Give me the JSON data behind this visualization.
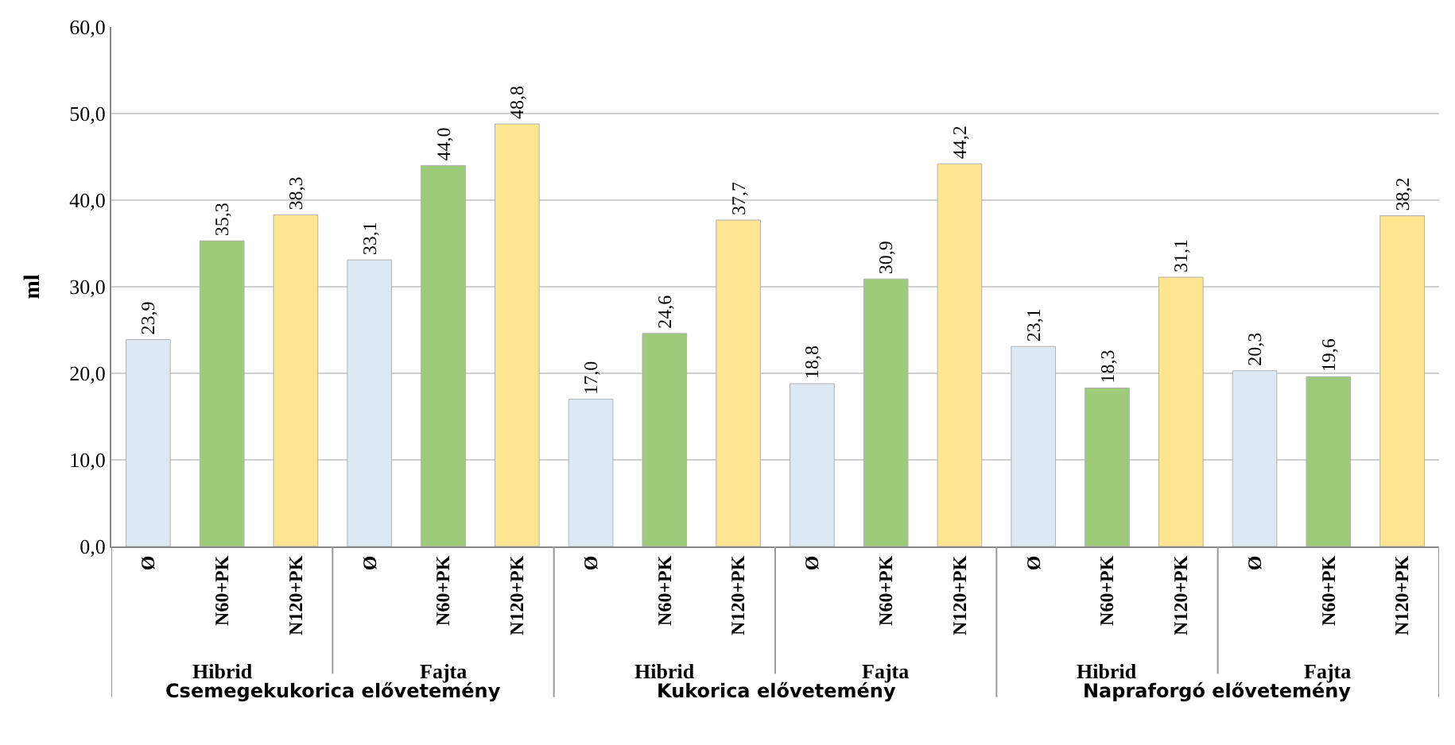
{
  "chart_data": {
    "type": "bar",
    "ylabel": "ml",
    "categories": [
      "Ø",
      "N60+PK",
      "N120+PK",
      "Ø",
      "N60+PK",
      "N120+PK",
      "Ø",
      "N60+PK",
      "N120+PK",
      "Ø",
      "N60+PK",
      "N120+PK",
      "Ø",
      "N60+PK",
      "N120+PK",
      "Ø",
      "N60+PK",
      "N120+PK"
    ],
    "values": [
      23.9,
      35.3,
      38.3,
      33.1,
      44.0,
      48.8,
      17.0,
      24.6,
      37.7,
      18.8,
      30.9,
      44.2,
      23.1,
      18.3,
      31.1,
      20.3,
      19.6,
      38.2
    ],
    "value_labels": [
      "23,9",
      "35,3",
      "38,3",
      "33,1",
      "44,0",
      "48,8",
      "17,0",
      "24,6",
      "37,7",
      "18,8",
      "30,9",
      "44,2",
      "23,1",
      "18,3",
      "31,1",
      "20,3",
      "19,6",
      "38,2"
    ],
    "colors": [
      "#dce9f5",
      "#9dcb7a",
      "#fde68f",
      "#dce9f5",
      "#9dcb7a",
      "#fde68f",
      "#dce9f5",
      "#9dcb7a",
      "#fde68f",
      "#dce9f5",
      "#9dcb7a",
      "#fde68f",
      "#dce9f5",
      "#9dcb7a",
      "#fde68f",
      "#dce9f5",
      "#9dcb7a",
      "#fde68f"
    ],
    "ylim": [
      0,
      60
    ],
    "yticks": [
      {
        "value": 0,
        "label": "0,0"
      },
      {
        "value": 10,
        "label": "10,0"
      },
      {
        "value": 20,
        "label": "20,0"
      },
      {
        "value": 30,
        "label": "30,0"
      },
      {
        "value": 40,
        "label": "40,0"
      },
      {
        "value": 50,
        "label": "50,0"
      },
      {
        "value": 60,
        "label": "60,0"
      }
    ],
    "grid": "y",
    "annotations": [
      "Hibrid",
      "Fajta",
      "Hibrid",
      "Fajta",
      "Hibrid",
      "Fajta",
      "Csemegekukorica elővetemény",
      "Kukorica elővetemény",
      "Napraforgó elővetemény"
    ]
  }
}
